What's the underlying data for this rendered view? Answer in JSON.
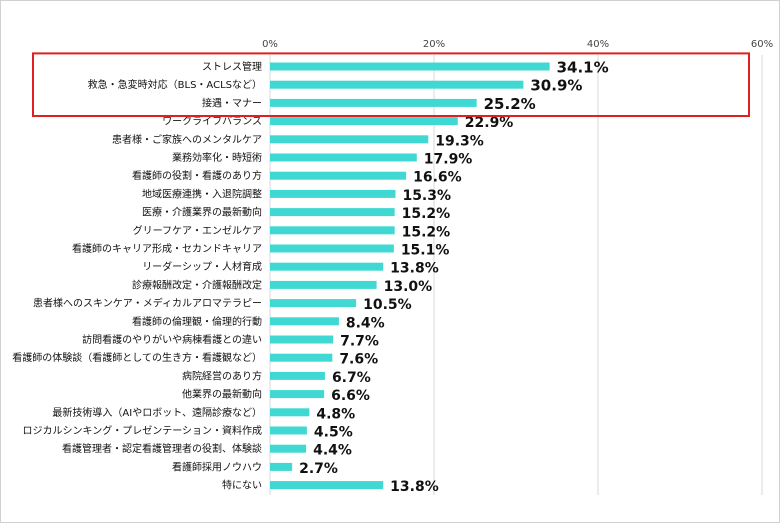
{
  "colors": {
    "bar": "#40d8d2",
    "grid": "#d9d9d9",
    "highlight_box": "#e02020"
  },
  "chart_data": {
    "type": "bar",
    "orientation": "horizontal",
    "title": "",
    "xlabel": "",
    "ylabel": "",
    "xlim": [
      0,
      60
    ],
    "ticks": [
      {
        "value": 0,
        "label": "0%"
      },
      {
        "value": 20,
        "label": "20%"
      },
      {
        "value": 40,
        "label": "40%"
      },
      {
        "value": 60,
        "label": "60%"
      }
    ],
    "grid": true,
    "highlighted_categories": 3,
    "categories": [
      "ストレス管理",
      "救急・急変時対応（BLS・ACLSなど）",
      "接遇・マナー",
      "ワークライフバランス",
      "患者様・ご家族へのメンタルケア",
      "業務効率化・時短術",
      "看護師の役割・看護のあり方",
      "地域医療連携・入退院調整",
      "医療・介護業界の最新動向",
      "グリーフケア・エンゼルケア",
      "看護師のキャリア形成・セカンドキャリア",
      "リーダーシップ・人材育成",
      "診療報酬改定・介護報酬改定",
      "患者様へのスキンケア・メディカルアロマテラピー",
      "看護師の倫理観・倫理的行動",
      "訪問看護のやりがいや病棟看護との違い",
      "看護師の体験談（看護師としての生き方・看護観など）",
      "病院経営のあり方",
      "他業界の最新動向",
      "最新技術導入（AIやロボット、遠隔診療など）",
      "ロジカルシンキング・プレゼンテーション・資料作成",
      "看護管理者・認定看護管理者の役割、体験談",
      "看護師採用ノウハウ",
      "特にない"
    ],
    "values": [
      34.1,
      30.9,
      25.2,
      22.9,
      19.3,
      17.9,
      16.6,
      15.3,
      15.2,
      15.2,
      15.1,
      13.8,
      13.0,
      10.5,
      8.4,
      7.7,
      7.6,
      6.7,
      6.6,
      4.8,
      4.5,
      4.4,
      2.7,
      13.8
    ],
    "value_labels": [
      "34.1%",
      "30.9%",
      "25.2%",
      "22.9%",
      "19.3%",
      "17.9%",
      "16.6%",
      "15.3%",
      "15.2%",
      "15.2%",
      "15.1%",
      "13.8%",
      "13.0%",
      "10.5%",
      "8.4%",
      "7.7%",
      "7.6%",
      "6.7%",
      "6.6%",
      "4.8%",
      "4.5%",
      "4.4%",
      "2.7%",
      "13.8%"
    ]
  }
}
